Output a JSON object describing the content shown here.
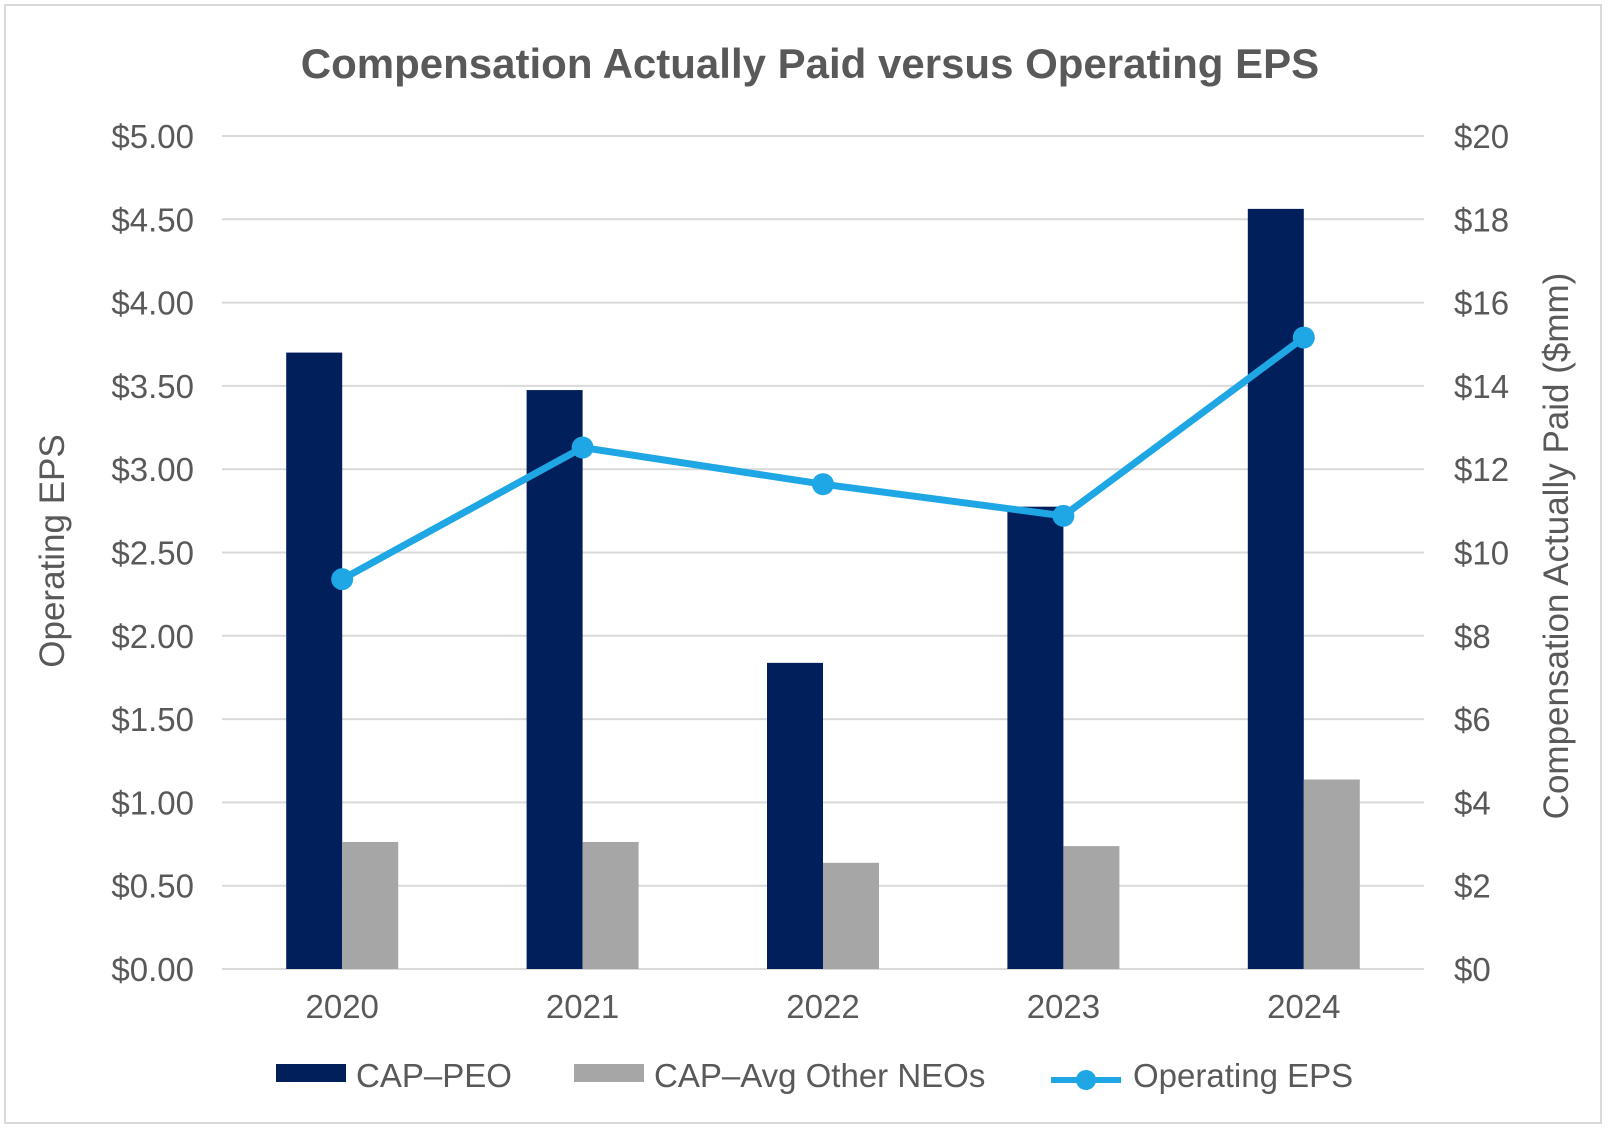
{
  "chart_data": {
    "type": "bar",
    "title": "Compensation Actually Paid versus Operating EPS",
    "categories": [
      "2020",
      "2021",
      "2022",
      "2023",
      "2024"
    ],
    "series": [
      {
        "name": "CAP–PEO",
        "kind": "bar",
        "axis": "right",
        "color": "#001f5b",
        "values": [
          14.8,
          13.9,
          7.35,
          11.1,
          18.25
        ]
      },
      {
        "name": "CAP–Avg Other NEOs",
        "kind": "bar",
        "axis": "right",
        "color": "#a6a6a6",
        "values": [
          3.05,
          3.05,
          2.55,
          2.95,
          4.55
        ]
      },
      {
        "name": "Operating EPS",
        "kind": "line",
        "axis": "left",
        "color": "#1ea7e4",
        "values": [
          2.34,
          3.13,
          2.91,
          2.72,
          3.79
        ]
      }
    ],
    "y_left": {
      "label": "Operating EPS",
      "min": 0,
      "max": 5,
      "step": 0.5,
      "tick_labels": [
        "$0.00",
        "$0.50",
        "$1.00",
        "$1.50",
        "$2.00",
        "$2.50",
        "$3.00",
        "$3.50",
        "$4.00",
        "$4.50",
        "$5.00"
      ]
    },
    "y_right": {
      "label": "Compensation Actually Paid ($mm)",
      "min": 0,
      "max": 20,
      "step": 2,
      "tick_labels": [
        "$0",
        "$2",
        "$4",
        "$6",
        "$8",
        "$10",
        "$12",
        "$14",
        "$16",
        "$18",
        "$20"
      ]
    },
    "grid": true,
    "legend": [
      "CAP–PEO",
      "CAP–Avg Other NEOs",
      "Operating EPS"
    ],
    "legend_position": "bottom"
  }
}
